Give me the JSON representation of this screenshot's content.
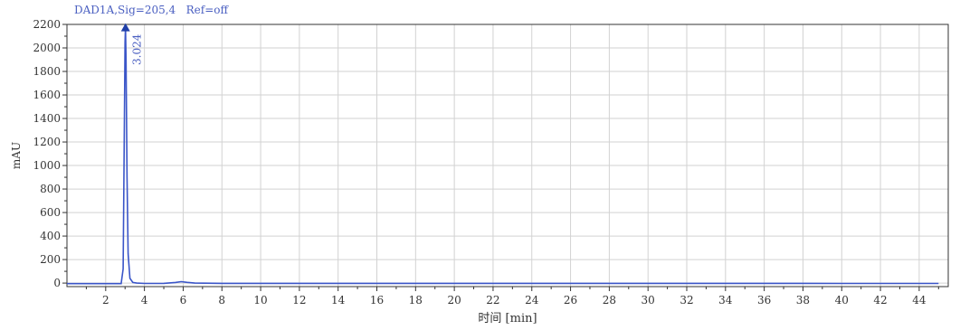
{
  "signal_label": "DAD1A,Sig=205,4   Ref=off",
  "chart_data": {
    "type": "line",
    "title": "DAD1A,Sig=205,4   Ref=off",
    "xlabel": "时间 [min]",
    "ylabel": "mAU",
    "xlim": [
      0,
      45.5
    ],
    "ylim": [
      -30,
      2200
    ],
    "xticks": [
      2,
      4,
      6,
      8,
      10,
      12,
      14,
      16,
      18,
      20,
      22,
      24,
      26,
      28,
      30,
      32,
      34,
      36,
      38,
      40,
      42,
      44
    ],
    "yticks": [
      0,
      200,
      400,
      600,
      800,
      1000,
      1200,
      1400,
      1600,
      1800,
      2000,
      2200
    ],
    "grid": true,
    "line_color": "#3a55c8",
    "series": [
      {
        "x": [
          0.0,
          2.8,
          2.9,
          2.96,
          3.0,
          3.024,
          3.05,
          3.1,
          3.16,
          3.25,
          3.4,
          3.6,
          4.0,
          5.0,
          5.6,
          5.9,
          6.2,
          6.6,
          8.0,
          20.0,
          30.0,
          40.0,
          45.0
        ],
        "y": [
          -5,
          -5,
          120,
          1300,
          2050,
          2180,
          1900,
          900,
          250,
          40,
          5,
          0,
          -3,
          -2,
          5,
          12,
          6,
          0,
          -2,
          -2,
          -2,
          -3,
          -3
        ]
      }
    ],
    "annotations": [
      {
        "x": 3.024,
        "y": 2180,
        "text": "3.024"
      }
    ]
  }
}
